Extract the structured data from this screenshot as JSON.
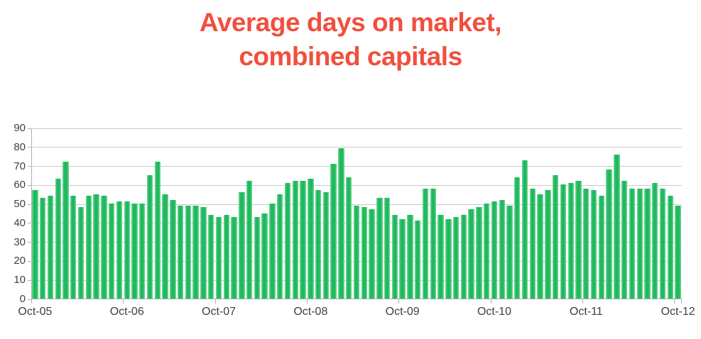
{
  "title": {
    "line1": "Average days on market,",
    "line2": "combined capitals"
  },
  "chart_data": {
    "type": "bar",
    "title": "Average days on market, combined capitals",
    "xlabel": "",
    "ylabel": "",
    "ylim": [
      0,
      90
    ],
    "ytick_values": [
      0,
      10,
      20,
      30,
      40,
      50,
      60,
      70,
      80,
      90
    ],
    "x_tick_labels": [
      "Oct-05",
      "Oct-06",
      "Oct-07",
      "Oct-08",
      "Oct-09",
      "Oct-10",
      "Oct-11",
      "Oct-12"
    ],
    "x_tick_positions": [
      0,
      12,
      24,
      36,
      48,
      60,
      72,
      84
    ],
    "x_start": "Oct-05",
    "x_end": "Oct-12",
    "x_interval": "monthly",
    "grid": true,
    "legend": false,
    "values": [
      57,
      53,
      54,
      63,
      72,
      54,
      48,
      54,
      55,
      54,
      50,
      51,
      51,
      50,
      50,
      65,
      72,
      55,
      52,
      49,
      49,
      49,
      48,
      44,
      43,
      44,
      43,
      56,
      62,
      43,
      45,
      50,
      55,
      61,
      62,
      62,
      63,
      57,
      56,
      71,
      79,
      64,
      49,
      48,
      47,
      53,
      53,
      44,
      42,
      44,
      41,
      58,
      58,
      44,
      42,
      43,
      44,
      47,
      48,
      50,
      51,
      52,
      49,
      64,
      73,
      58,
      55,
      57,
      65,
      60,
      61,
      62,
      58,
      57,
      54,
      68,
      76,
      62,
      58,
      58,
      58,
      61,
      58,
      54,
      49
    ],
    "colors": {
      "bar": "#1eb95c",
      "bar_edge": "#7cd8a0",
      "title": "#f14f3d",
      "grid": "#cacaca",
      "axis": "#b0b0b0",
      "tick_label": "#3f3f3f"
    }
  }
}
